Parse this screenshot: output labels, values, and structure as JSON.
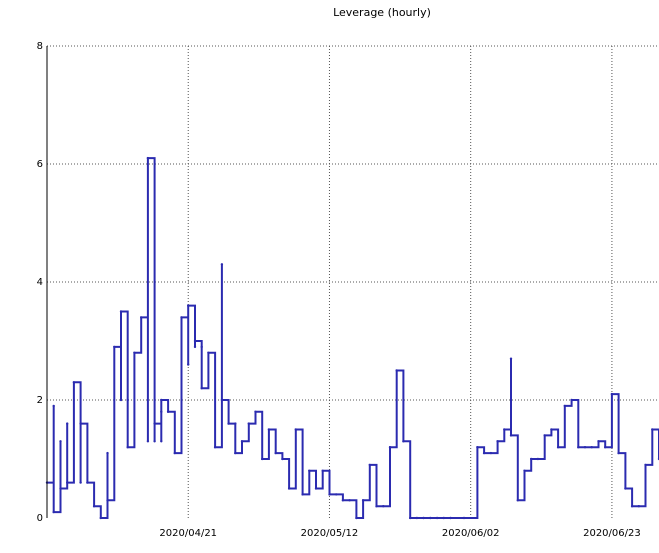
{
  "chart_data": {
    "type": "line",
    "title": "Leverage (hourly)",
    "xlabel": "",
    "ylabel": "",
    "ylim": [
      0,
      8
    ],
    "y_ticks": [
      "0",
      "2",
      "4",
      "6",
      "8"
    ],
    "x_ticks": [
      "2020/04/21",
      "2020/05/12",
      "2020/06/02",
      "2020/06/23"
    ],
    "grid": true,
    "line_color": "#2b2bb0",
    "series": [
      {
        "x": [
          "2020/03/31",
          "2020/04/01",
          "2020/04/01",
          "2020/04/02",
          "2020/04/02",
          "2020/04/03",
          "2020/04/03",
          "2020/04/04",
          "2020/04/05",
          "2020/04/05",
          "2020/04/06",
          "2020/04/07",
          "2020/04/08",
          "2020/04/09",
          "2020/04/09",
          "2020/04/10",
          "2020/04/11",
          "2020/04/11",
          "2020/04/12",
          "2020/04/12",
          "2020/04/13",
          "2020/04/14",
          "2020/04/15",
          "2020/04/15",
          "2020/04/16",
          "2020/04/16",
          "2020/04/17",
          "2020/04/17",
          "2020/04/17",
          "2020/04/18",
          "2020/04/19",
          "2020/04/20",
          "2020/04/21",
          "2020/04/21",
          "2020/04/22",
          "2020/04/22",
          "2020/04/23",
          "2020/04/23",
          "2020/04/24",
          "2020/04/25",
          "2020/04/26",
          "2020/04/26",
          "2020/04/27",
          "2020/04/28",
          "2020/04/28",
          "2020/04/29",
          "2020/04/30",
          "2020/05/01",
          "2020/05/02",
          "2020/05/03",
          "2020/05/04",
          "2020/05/05",
          "2020/05/06",
          "2020/05/07",
          "2020/05/08",
          "2020/05/09",
          "2020/05/10",
          "2020/05/11",
          "2020/05/12",
          "2020/05/13",
          "2020/05/14",
          "2020/05/15",
          "2020/05/16",
          "2020/05/17",
          "2020/05/18",
          "2020/05/19",
          "2020/05/20",
          "2020/05/21",
          "2020/05/22",
          "2020/05/23",
          "2020/05/24",
          "2020/05/25",
          "2020/05/26",
          "2020/05/27",
          "2020/05/28",
          "2020/05/29",
          "2020/05/30",
          "2020/06/01",
          "2020/06/03",
          "2020/06/04",
          "2020/06/05",
          "2020/06/06",
          "2020/06/07",
          "2020/06/08",
          "2020/06/08",
          "2020/06/09",
          "2020/06/10",
          "2020/06/11",
          "2020/06/12",
          "2020/06/13",
          "2020/06/14",
          "2020/06/15",
          "2020/06/16",
          "2020/06/17",
          "2020/06/18",
          "2020/06/19",
          "2020/06/20",
          "2020/06/21",
          "2020/06/22",
          "2020/06/23",
          "2020/06/24",
          "2020/06/25",
          "2020/06/26",
          "2020/06/27",
          "2020/06/28",
          "2020/06/29",
          "2020/06/30"
        ],
        "y": [
          0.6,
          1.9,
          0.1,
          1.3,
          0.5,
          1.6,
          0.6,
          2.3,
          0.6,
          1.6,
          0.6,
          0.2,
          0.0,
          1.1,
          0.3,
          2.9,
          2.0,
          3.5,
          2.0,
          1.2,
          2.8,
          3.4,
          1.3,
          6.1,
          1.3,
          1.6,
          1.3,
          1.8,
          2.0,
          1.8,
          1.1,
          3.4,
          2.6,
          3.6,
          2.9,
          3.0,
          2.9,
          2.2,
          2.8,
          1.2,
          4.3,
          2.0,
          1.6,
          1.6,
          1.1,
          1.3,
          1.6,
          1.8,
          1.0,
          1.5,
          1.1,
          1.0,
          0.5,
          1.5,
          0.4,
          0.8,
          0.5,
          0.8,
          0.4,
          0.4,
          0.3,
          0.3,
          0.0,
          0.3,
          0.9,
          0.2,
          0.2,
          1.2,
          2.5,
          1.3,
          0.0,
          0.0,
          0.0,
          0.0,
          0.0,
          0.0,
          0.0,
          0.0,
          1.2,
          1.1,
          1.1,
          1.3,
          1.5,
          2.7,
          1.4,
          0.3,
          0.8,
          1.0,
          1.0,
          1.4,
          1.5,
          1.2,
          1.9,
          2.0,
          1.2,
          1.2,
          1.2,
          1.3,
          1.2,
          2.1,
          1.1,
          0.5,
          0.2,
          0.2,
          0.9,
          1.5,
          1.0
        ]
      }
    ]
  }
}
